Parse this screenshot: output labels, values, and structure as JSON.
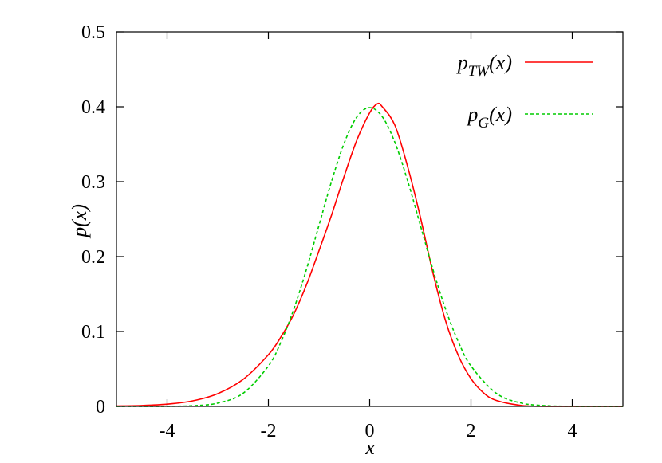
{
  "chart_data": {
    "type": "line",
    "xlabel": "x",
    "ylabel": "p(x)",
    "xlim": [
      -5,
      5
    ],
    "ylim": [
      0,
      0.5
    ],
    "xticks": [
      "-4",
      "-2",
      "0",
      "2",
      "4"
    ],
    "xtick_values": [
      -4,
      -2,
      0,
      2,
      4
    ],
    "yticks": [
      "0",
      "0.1",
      "0.2",
      "0.3",
      "0.4",
      "0.5"
    ],
    "ytick_values": [
      0,
      0.1,
      0.2,
      0.3,
      0.4,
      0.5
    ],
    "grid": false,
    "legend_position": "top-right",
    "legend": {
      "tw": {
        "base": "p",
        "sub": "TW",
        "tail": "(x)"
      },
      "g": {
        "base": "p",
        "sub": "G",
        "tail": "(x)"
      }
    },
    "series": [
      {
        "name": "pTW(x)",
        "color": "#ff0000",
        "dash": "solid",
        "x": [
          -5,
          -4.5,
          -4,
          -3.5,
          -3,
          -2.5,
          -2,
          -1.75,
          -1.5,
          -1.25,
          -1,
          -0.75,
          -0.5,
          -0.25,
          0,
          0.15,
          0.25,
          0.5,
          0.75,
          1,
          1.25,
          1.5,
          1.75,
          2,
          2.25,
          2.5,
          3,
          3.5,
          4,
          5
        ],
        "y": [
          0.0005,
          0.0012,
          0.003,
          0.0073,
          0.017,
          0.036,
          0.069,
          0.093,
          0.123,
          0.162,
          0.208,
          0.256,
          0.308,
          0.356,
          0.392,
          0.404,
          0.4,
          0.375,
          0.32,
          0.253,
          0.178,
          0.114,
          0.068,
          0.037,
          0.018,
          0.008,
          0.0012,
          0.0001,
          0.0,
          0.0
        ]
      },
      {
        "name": "pG(x)",
        "color": "#00cc00",
        "dash": "dashed",
        "x": [
          -5,
          -4.5,
          -4,
          -3.5,
          -3,
          -2.5,
          -2,
          -1.75,
          -1.5,
          -1.25,
          -1,
          -0.75,
          -0.5,
          -0.25,
          0,
          0.25,
          0.5,
          0.75,
          1,
          1.25,
          1.5,
          1.75,
          2,
          2.5,
          3,
          3.5,
          4,
          4.5,
          5
        ],
        "y": [
          0.0,
          0.0,
          0.0001,
          0.0009,
          0.0044,
          0.0175,
          0.054,
          0.0863,
          0.1295,
          0.1826,
          0.242,
          0.3011,
          0.3521,
          0.3867,
          0.3989,
          0.3867,
          0.3521,
          0.3011,
          0.242,
          0.1826,
          0.1295,
          0.0863,
          0.054,
          0.0175,
          0.0044,
          0.0009,
          0.0001,
          0.0,
          0.0
        ]
      }
    ]
  }
}
